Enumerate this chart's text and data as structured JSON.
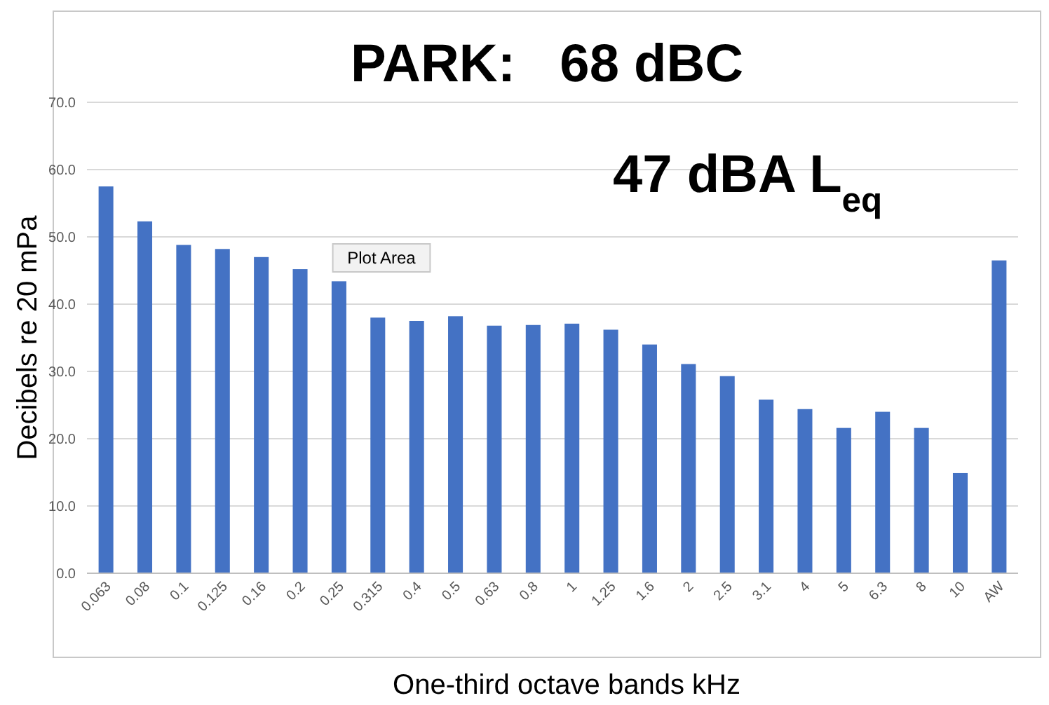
{
  "chart_data": {
    "type": "bar",
    "title": "PARK:   68 dBC",
    "subtitle": "47 dBA L$_{eq}$",
    "xlabel": "One-third octave bands kHz",
    "ylabel": "Decibels re 20 mPa",
    "categories": [
      "0.063",
      "0.08",
      "0.1",
      "0.125",
      "0.16",
      "0.2",
      "0.25",
      "0.315",
      "0.4",
      "0.5",
      "0.63",
      "0.8",
      "1",
      "1.25",
      "1.6",
      "2",
      "2.5",
      "3.1",
      "4",
      "5",
      "6.3",
      "8",
      "10",
      "AW"
    ],
    "values": [
      57.5,
      52.3,
      48.8,
      48.2,
      47.0,
      45.2,
      43.4,
      38.0,
      37.5,
      38.2,
      36.8,
      36.9,
      37.1,
      36.2,
      34.0,
      31.1,
      29.3,
      25.8,
      24.4,
      21.6,
      24.0,
      21.6,
      14.9,
      46.5
    ],
    "color": "#4472c4",
    "ylim": [
      0,
      70
    ],
    "yticks": [
      {
        "value": 0,
        "label": "0.0"
      },
      {
        "value": 10,
        "label": "10.0"
      },
      {
        "value": 20,
        "label": "20.0"
      },
      {
        "value": 30,
        "label": "30.0"
      },
      {
        "value": 40,
        "label": "40.0"
      },
      {
        "value": 50,
        "label": "50.0"
      },
      {
        "value": 60,
        "label": "60.0"
      },
      {
        "value": 70,
        "label": "70.0"
      }
    ],
    "grid": "y",
    "annotations": [
      "Plot Area"
    ]
  }
}
